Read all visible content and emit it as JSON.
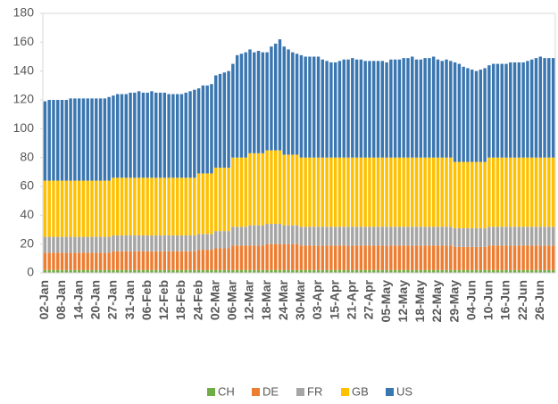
{
  "chart_data": {
    "type": "bar",
    "stacked": true,
    "grid": false,
    "legend": "bottom",
    "categories": [
      "02-Jan",
      null,
      null,
      null,
      "08-Jan",
      null,
      null,
      null,
      "14-Jan",
      null,
      null,
      null,
      "20-Jan",
      null,
      null,
      null,
      "27-Jan",
      null,
      null,
      null,
      "31-Jan",
      null,
      null,
      null,
      "06-Feb",
      null,
      null,
      null,
      "12-Feb",
      null,
      null,
      null,
      "18-Feb",
      null,
      null,
      null,
      "24-Feb",
      null,
      null,
      null,
      "02-Mar",
      null,
      null,
      null,
      "06-Mar",
      null,
      null,
      null,
      "12-Mar",
      null,
      null,
      null,
      "18-Mar",
      null,
      null,
      null,
      "24-Mar",
      null,
      null,
      null,
      "30-Mar",
      null,
      null,
      null,
      "03-Apr",
      null,
      null,
      null,
      "15-Apr",
      null,
      null,
      null,
      "21-Apr",
      null,
      null,
      null,
      "27-Apr",
      null,
      null,
      null,
      "05-May",
      null,
      null,
      null,
      "12-May",
      null,
      null,
      null,
      "18-May",
      null,
      null,
      null,
      "22-May",
      null,
      null,
      null,
      "29-May",
      null,
      null,
      null,
      "04-Jun",
      null,
      null,
      null,
      "10-Jun",
      null,
      null,
      null,
      "16-Jun",
      null,
      null,
      null,
      "22-Jun",
      null,
      null,
      null,
      "26-Jun",
      null,
      null,
      null
    ],
    "series": [
      {
        "name": "CH",
        "color": "#70ad47",
        "values": [
          2,
          2,
          2,
          2,
          2,
          2,
          2,
          2,
          2,
          2,
          2,
          2,
          2,
          2,
          2,
          2,
          2,
          2,
          2,
          2,
          2,
          2,
          2,
          2,
          2,
          2,
          2,
          2,
          2,
          2,
          2,
          2,
          2,
          2,
          2,
          2,
          2,
          2,
          2,
          2,
          2,
          2,
          2,
          2,
          2,
          2,
          2,
          2,
          2,
          2,
          2,
          2,
          2,
          2,
          2,
          2,
          2,
          2,
          2,
          2,
          2,
          2,
          2,
          2,
          2,
          2,
          2,
          2,
          2,
          2,
          2,
          2,
          2,
          2,
          2,
          2,
          2,
          2,
          2,
          2,
          2,
          2,
          2,
          2,
          2,
          2,
          2,
          2,
          2,
          2,
          2,
          2,
          2,
          2,
          2,
          2,
          2,
          2,
          2,
          2,
          2,
          2,
          2,
          2,
          2,
          2,
          2,
          2,
          2,
          2,
          2,
          2,
          2,
          2,
          2,
          2,
          2,
          2,
          2,
          2
        ]
      },
      {
        "name": "DE",
        "color": "#ed7d31",
        "values": [
          12,
          12,
          12,
          12,
          12,
          12,
          12,
          12,
          12,
          12,
          12,
          12,
          12,
          12,
          12,
          12,
          13,
          13,
          13,
          13,
          13,
          13,
          13,
          13,
          13,
          13,
          13,
          13,
          13,
          13,
          13,
          13,
          13,
          13,
          13,
          13,
          14,
          14,
          14,
          14,
          15,
          15,
          15,
          15,
          17,
          17,
          17,
          17,
          17,
          17,
          17,
          17,
          18,
          18,
          18,
          18,
          18,
          18,
          18,
          18,
          17,
          17,
          17,
          17,
          17,
          17,
          17,
          17,
          17,
          17,
          17,
          17,
          17,
          17,
          17,
          17,
          17,
          17,
          17,
          17,
          17,
          17,
          17,
          17,
          17,
          17,
          17,
          17,
          17,
          17,
          17,
          17,
          17,
          17,
          17,
          17,
          16,
          16,
          16,
          16,
          16,
          16,
          16,
          16,
          17,
          17,
          17,
          17,
          17,
          17,
          17,
          17,
          17,
          17,
          17,
          17,
          17,
          17,
          17,
          17
        ]
      },
      {
        "name": "FR",
        "color": "#a5a5a5",
        "values": [
          11,
          11,
          11,
          11,
          11,
          11,
          11,
          11,
          11,
          11,
          11,
          11,
          11,
          11,
          11,
          11,
          11,
          11,
          11,
          11,
          11,
          11,
          11,
          11,
          11,
          11,
          11,
          11,
          11,
          11,
          11,
          11,
          11,
          11,
          11,
          11,
          11,
          11,
          11,
          11,
          12,
          12,
          12,
          12,
          13,
          13,
          13,
          13,
          14,
          14,
          14,
          14,
          14,
          14,
          14,
          14,
          13,
          13,
          13,
          13,
          13,
          13,
          13,
          13,
          13,
          13,
          13,
          13,
          13,
          13,
          13,
          13,
          13,
          13,
          13,
          13,
          13,
          13,
          13,
          13,
          13,
          13,
          13,
          13,
          13,
          13,
          13,
          13,
          13,
          13,
          13,
          13,
          13,
          13,
          13,
          13,
          13,
          13,
          13,
          13,
          13,
          13,
          13,
          13,
          13,
          13,
          13,
          13,
          13,
          13,
          13,
          13,
          13,
          13,
          13,
          13,
          13,
          13,
          13,
          13
        ]
      },
      {
        "name": "GB",
        "color": "#ffc000",
        "values": [
          39,
          39,
          39,
          39,
          39,
          39,
          39,
          39,
          39,
          39,
          39,
          39,
          39,
          39,
          39,
          39,
          40,
          40,
          40,
          40,
          40,
          40,
          40,
          40,
          40,
          40,
          40,
          40,
          40,
          40,
          40,
          40,
          40,
          40,
          40,
          40,
          42,
          42,
          42,
          42,
          44,
          44,
          44,
          44,
          48,
          48,
          48,
          48,
          50,
          50,
          50,
          50,
          51,
          51,
          51,
          51,
          49,
          49,
          49,
          49,
          48,
          48,
          48,
          48,
          48,
          48,
          48,
          48,
          48,
          48,
          48,
          48,
          48,
          48,
          48,
          48,
          48,
          48,
          48,
          48,
          48,
          48,
          48,
          48,
          48,
          48,
          48,
          48,
          48,
          48,
          48,
          48,
          48,
          48,
          48,
          48,
          46,
          46,
          46,
          46,
          46,
          46,
          46,
          46,
          48,
          48,
          48,
          48,
          48,
          48,
          48,
          48,
          48,
          48,
          48,
          48,
          48,
          48,
          48,
          48
        ]
      },
      {
        "name": "US",
        "color": "#3a76b0",
        "values": [
          55,
          56,
          56,
          56,
          56,
          56,
          57,
          57,
          57,
          57,
          57,
          57,
          57,
          57,
          57,
          58,
          57,
          58,
          58,
          58,
          59,
          59,
          60,
          59,
          59,
          60,
          59,
          59,
          59,
          58,
          58,
          58,
          58,
          59,
          60,
          61,
          59,
          61,
          61,
          62,
          64,
          65,
          66,
          67,
          65,
          71,
          72,
          73,
          72,
          70,
          71,
          70,
          68,
          72,
          74,
          77,
          75,
          73,
          71,
          70,
          71,
          70,
          70,
          70,
          70,
          68,
          67,
          66,
          66,
          67,
          68,
          68,
          69,
          68,
          68,
          67,
          67,
          67,
          67,
          67,
          66,
          68,
          68,
          68,
          69,
          69,
          70,
          68,
          68,
          69,
          69,
          70,
          68,
          67,
          68,
          67,
          69,
          68,
          66,
          65,
          64,
          63,
          64,
          65,
          64,
          65,
          65,
          65,
          65,
          66,
          66,
          66,
          66,
          67,
          68,
          69,
          70,
          69,
          69,
          69
        ]
      }
    ],
    "ylim": [
      0,
      180
    ],
    "yticks": [
      0,
      20,
      40,
      60,
      80,
      100,
      120,
      140,
      160,
      180
    ]
  }
}
